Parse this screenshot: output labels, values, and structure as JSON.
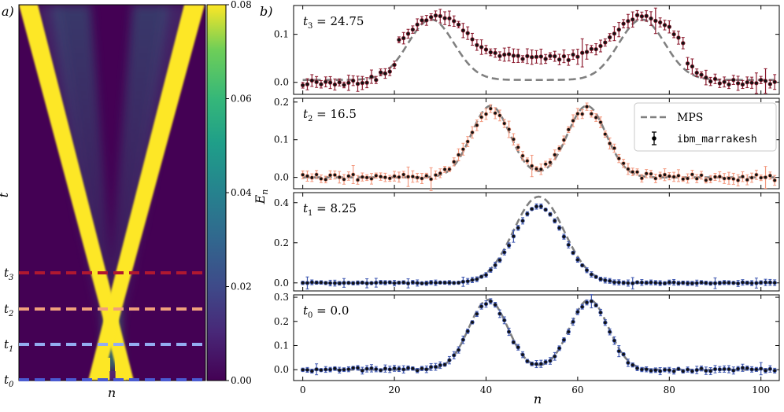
{
  "chart_data": [
    {
      "type": "heatmap",
      "panel_label": "a)",
      "xlabel": "n",
      "ylabel": "t",
      "colorbar": {
        "ticks": [
          "0.00",
          "0.02",
          "0.04",
          "0.06",
          "0.08"
        ],
        "range": [
          0,
          0.08
        ],
        "colormap": "viridis"
      },
      "time_markers": [
        {
          "label": "t0",
          "color": "#4a5ad0"
        },
        {
          "label": "t1",
          "color": "#93acf0"
        },
        {
          "label": "t2",
          "color": "#f0a07c"
        },
        {
          "label": "t3",
          "color": "#b01830"
        }
      ]
    },
    {
      "type": "scatter",
      "panel_label": "b)",
      "xlabel": "n",
      "ylabel": "E_n",
      "xlim": [
        -2,
        104
      ],
      "xticks": [
        "0",
        "20",
        "40",
        "60",
        "80",
        "100"
      ],
      "legend": {
        "placement": "right",
        "entries": [
          "MPS",
          "ibm_marrakesh"
        ]
      },
      "panels": [
        {
          "label": "t3 = 24.75",
          "color": "#8b1a2e",
          "ylim": [
            -0.025,
            0.16
          ],
          "yticks": [
            "0.0",
            "0.1"
          ],
          "mps": {
            "peaks": [
              28,
              74
            ],
            "height": 0.14,
            "width": 5.0,
            "baseline": 0.015,
            "offset": -0.01
          },
          "device": {
            "peaks": [
              29.5,
              74.5
            ],
            "height": 0.13,
            "width": 6.0,
            "baseline": 0.05,
            "noise": 0.006
          }
        },
        {
          "label": "t2 = 16.5",
          "color": "#f39a80",
          "ylim": [
            -0.03,
            0.21
          ],
          "yticks": [
            "0.0",
            "0.1",
            "0.2"
          ],
          "mps": {
            "peaks": [
              41,
              62
            ],
            "height": 0.19,
            "width": 4.2,
            "baseline": 0.0,
            "offset": 0.0
          },
          "device": {
            "peaks": [
              41,
              62
            ],
            "height": 0.18,
            "width": 4.5,
            "baseline": 0.0,
            "noise": 0.008
          }
        },
        {
          "label": "t1 = 8.25",
          "color": "#3e57b0",
          "ylim": [
            -0.04,
            0.45
          ],
          "yticks": [
            "0.0",
            "0.2",
            "0.4"
          ],
          "mps": {
            "peaks": [
              51.5
            ],
            "height": 0.43,
            "width": 5.5,
            "baseline": 0.0,
            "offset": 0.0
          },
          "device": {
            "peaks": [
              51.5
            ],
            "height": 0.38,
            "width": 5.5,
            "baseline": 0.0,
            "noise": 0.003
          }
        },
        {
          "label": "t0 = 0.0",
          "color": "#3e57b0",
          "ylim": [
            -0.045,
            0.31
          ],
          "yticks": [
            "0.0",
            "0.1",
            "0.2",
            "0.3"
          ],
          "mps": {
            "peaks": [
              40.5,
              62.5
            ],
            "height": 0.29,
            "width": 4.2,
            "baseline": 0.0,
            "offset": 0.0
          },
          "device": {
            "peaks": [
              40.5,
              62.5
            ],
            "height": 0.28,
            "width": 4.2,
            "baseline": 0.0,
            "noise": 0.008
          }
        }
      ]
    }
  ]
}
